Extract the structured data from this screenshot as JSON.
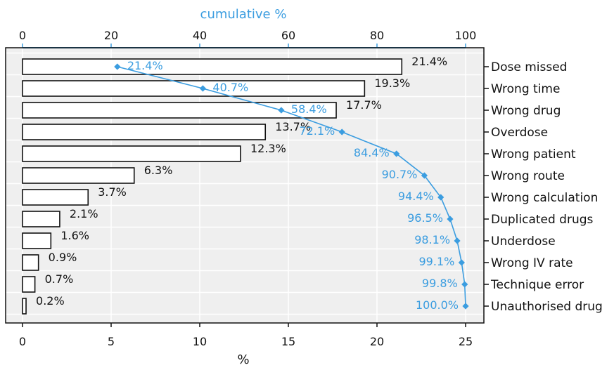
{
  "chart_data": {
    "type": "bar",
    "orientation": "horizontal",
    "categories": [
      "Dose missed",
      "Wrong time",
      "Wrong drug",
      "Overdose",
      "Wrong patient",
      "Wrong route",
      "Wrong calculation",
      "Duplicated drugs",
      "Underdose",
      "Wrong IV rate",
      "Technique error",
      "Unauthorised drug"
    ],
    "values": [
      21.4,
      19.3,
      17.7,
      13.7,
      12.3,
      6.3,
      3.7,
      2.1,
      1.6,
      0.9,
      0.7,
      0.2
    ],
    "value_labels": [
      "21.4%",
      "19.3%",
      "17.7%",
      "13.7%",
      "12.3%",
      "6.3%",
      "3.7%",
      "2.1%",
      "1.6%",
      "0.9%",
      "0.7%",
      "0.2%"
    ],
    "cumulative": [
      21.4,
      40.7,
      58.4,
      72.1,
      84.4,
      90.7,
      94.4,
      96.5,
      98.1,
      99.1,
      99.8,
      100.0
    ],
    "cumulative_labels": [
      "21.4%",
      "40.7%",
      "58.4%",
      "72.1%",
      "84.4%",
      "90.7%",
      "94.4%",
      "96.5%",
      "98.1%",
      "99.1%",
      "99.8%",
      "100.0%"
    ],
    "xlabel": "%",
    "xlim": [
      0,
      25
    ],
    "xticks": [
      0,
      5,
      10,
      15,
      20,
      25
    ],
    "x2label": "cumulative %",
    "x2lim": [
      0,
      100
    ],
    "x2ticks": [
      0,
      20,
      40,
      60,
      80,
      100
    ],
    "grid": true,
    "colors": {
      "panel": "#efefef",
      "grid": "#ffffff",
      "bar_fill": "#ffffff",
      "bar_stroke": "#111111",
      "cumulative": "#3b9de0"
    }
  }
}
